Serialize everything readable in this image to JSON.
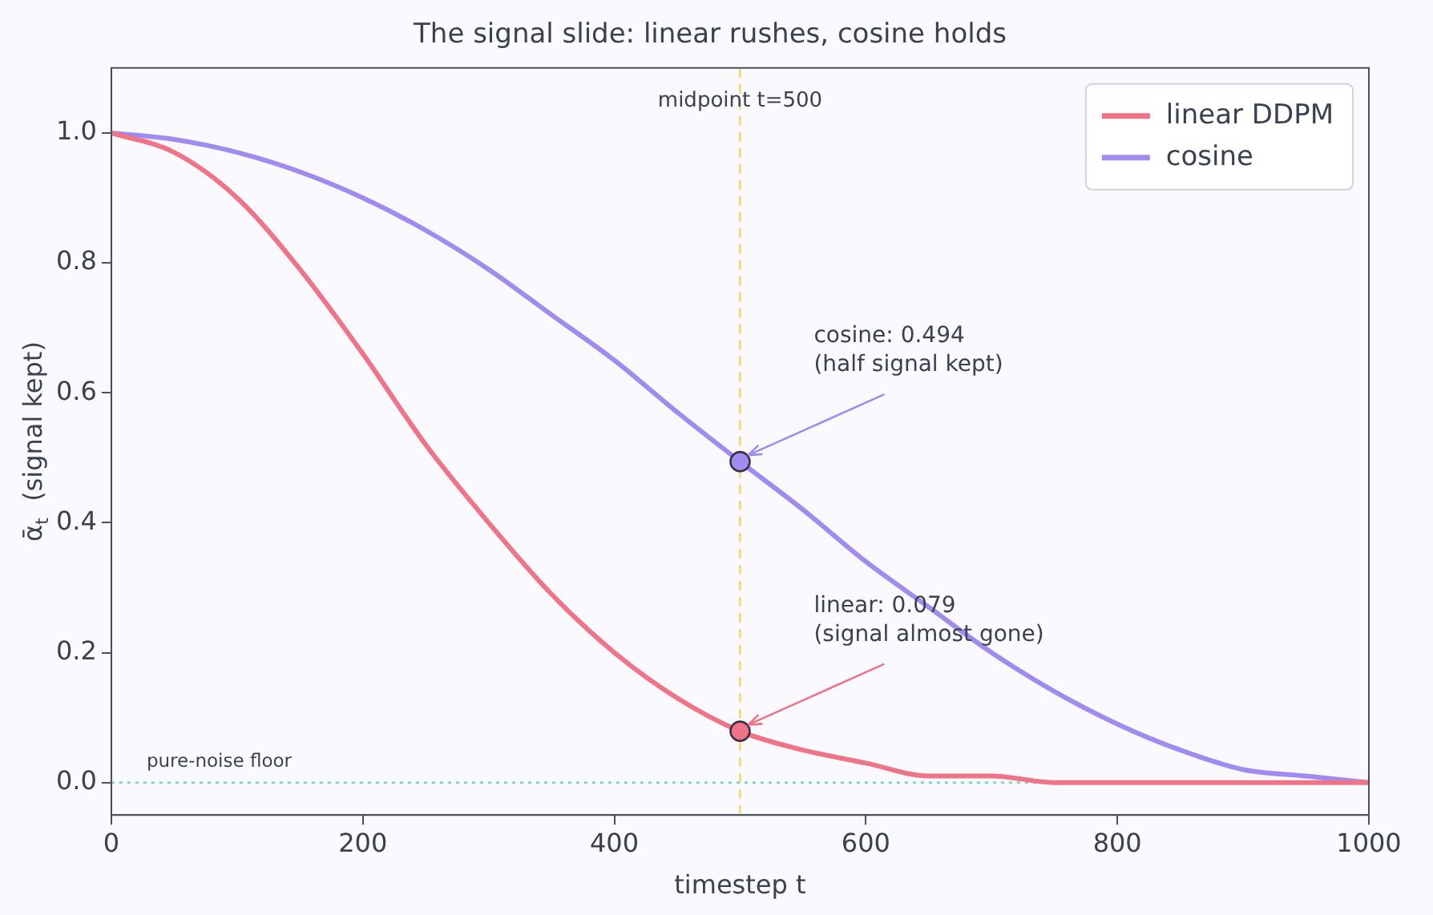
{
  "chart_data": {
    "type": "line",
    "title": "The signal slide: linear rushes, cosine holds",
    "xlabel": "timestep t",
    "ylabel": "ᾱ$_{t}$  (signal kept)",
    "xlim": [
      0,
      1000
    ],
    "xticks": [
      0,
      200,
      400,
      600,
      800,
      1000
    ],
    "ylim": [
      -0.05,
      1.1
    ],
    "yticks": [
      {
        "value": 0,
        "label": "0.0"
      },
      0.2,
      0.4,
      0.6,
      0.8,
      {
        "value": 1,
        "label": "1.0"
      }
    ],
    "grid": false,
    "legend": "top right",
    "marker": "none",
    "line_style": "solid",
    "series": [
      {
        "name": "linear DDPM",
        "color": "#f07488",
        "x": [
          0,
          50,
          100,
          150,
          200,
          250,
          300,
          350,
          400,
          450,
          500,
          550,
          600,
          650,
          700,
          750,
          800,
          850,
          900,
          950,
          1000
        ],
        "values": [
          1,
          0.97,
          0.9,
          0.79,
          0.66,
          0.52,
          0.4,
          0.29,
          0.2,
          0.13,
          0.079,
          0.05,
          0.03,
          0.01,
          0.01,
          0,
          0,
          0,
          0,
          0,
          0
        ]
      },
      {
        "name": "cosine",
        "color": "#a08cf0",
        "x": [
          0,
          50,
          100,
          150,
          200,
          250,
          300,
          350,
          400,
          450,
          500,
          550,
          600,
          650,
          700,
          750,
          800,
          850,
          900,
          950,
          1000
        ],
        "values": [
          1,
          0.99,
          0.97,
          0.94,
          0.9,
          0.85,
          0.79,
          0.72,
          0.65,
          0.57,
          0.494,
          0.42,
          0.34,
          0.27,
          0.2,
          0.14,
          0.09,
          0.05,
          0.02,
          0.01,
          0
        ]
      },
      {
        "type": "scatter",
        "color": "#a08cf0",
        "x": [
          500
        ],
        "values": [
          0.494
        ],
        "marker": "circle"
      },
      {
        "type": "scatter",
        "color": "#f07488",
        "x": [
          500
        ],
        "values": [
          0.079
        ],
        "marker": "circle"
      }
    ],
    "ref_lines": [
      {
        "axis": "x",
        "value": 500,
        "label": "midpoint t=500",
        "color": "#f5dc82",
        "line_style": "dashed"
      },
      {
        "axis": "y",
        "value": 0,
        "label": "pure-noise floor",
        "color": "#7dd8c0",
        "line_style": "dotted"
      }
    ],
    "annotations": [
      {
        "text": "cosine: 0.494\n(half signal kept)",
        "x": 500,
        "y": 0.494
      },
      {
        "text": "linear: 0.079\n(signal almost gone)",
        "x": 500,
        "y": 0.079
      }
    ]
  }
}
